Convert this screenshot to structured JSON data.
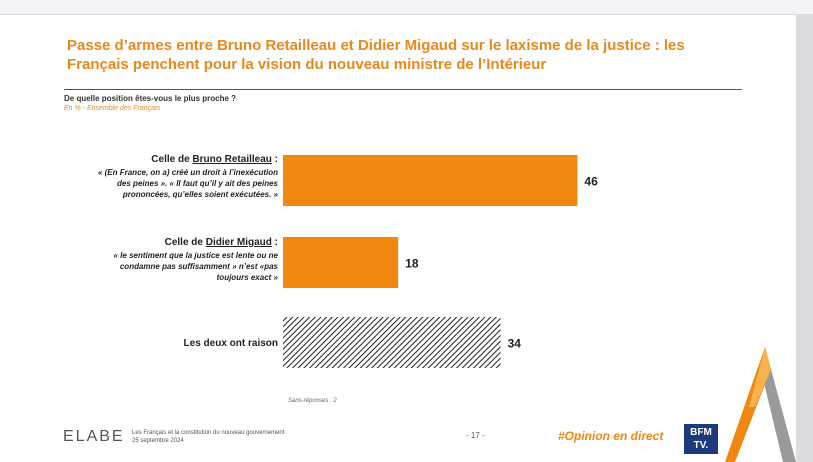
{
  "title": "Passe d’armes entre Bruno Retailleau et Didier Migaud sur le laxisme de la justice : les Français penchent pour la vision du nouveau ministre de l’Intérieur",
  "question": "De quelle position êtes-vous le plus proche ?",
  "subquestion": "En % - Ensemble des Français",
  "items": [
    {
      "title_prefix": "Celle de ",
      "title_name": "Bruno Retailleau",
      "title_suffix": " :",
      "quote_lines": [
        "« (En France, on a) créé un droit à l’inexécution",
        "des peines ». « Il faut qu’il y ait des peines",
        "prononcées, qu’elles soient exécutées. »"
      ]
    },
    {
      "title_prefix": "Celle de ",
      "title_name": "Didier Migaud",
      "title_suffix": " :",
      "quote_lines": [
        "« le sentiment que la justice est lente ou ne",
        "condamne pas suffisamment » n’est «pas",
        "toujours exact »"
      ]
    },
    {
      "title_prefix": "Les deux ont raison",
      "title_name": "",
      "title_suffix": "",
      "quote_lines": []
    }
  ],
  "chart_data": {
    "type": "bar",
    "orientation": "horizontal",
    "categories": [
      "Celle de Bruno Retailleau",
      "Celle de Didier Migaud",
      "Les deux ont raison"
    ],
    "values": [
      46,
      18,
      34
    ],
    "colors": [
      "#f0870f",
      "#f0870f",
      "hatched"
    ],
    "xlim": [
      0,
      100
    ],
    "grid": false
  },
  "footnote": "Sans-réponses : 2",
  "footer": {
    "brand": "ELABE",
    "study_line1": "Les Français et la constitution du nouveau gouvernement",
    "study_line2": "25 septembre 2024",
    "page": "- 17 -",
    "hashtag": "#Opinion en direct",
    "bfm_line1": "BFM",
    "bfm_line2": "TV."
  },
  "colors": {
    "accent": "#e8891b",
    "bar": "#f0870f",
    "hatch": "#222222"
  }
}
